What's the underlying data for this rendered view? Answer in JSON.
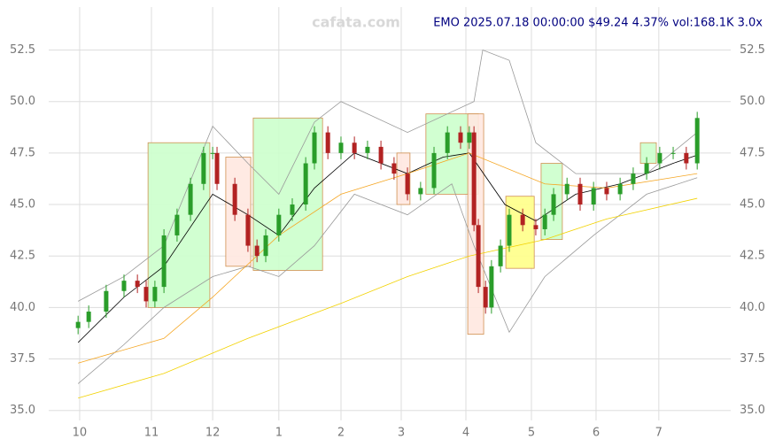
{
  "chart_data": {
    "type": "candlestick",
    "title": "EMO 2025.07.18 00:00:00 $49.24 4.37% vol:168.1K 3.0x",
    "watermark": "cafata.com",
    "xlim": [
      0,
      200
    ],
    "xticks": [
      {
        "value": 1.4,
        "label": "10"
      },
      {
        "value": 24.4,
        "label": "11"
      },
      {
        "value": 44,
        "label": "12"
      },
      {
        "value": 65.2,
        "label": "1"
      },
      {
        "value": 85.1,
        "label": "2"
      },
      {
        "value": 104.4,
        "label": "3"
      },
      {
        "value": 125.1,
        "label": "4"
      },
      {
        "value": 146.1,
        "label": "5"
      },
      {
        "value": 166.8,
        "label": "6"
      },
      {
        "value": 186.9,
        "label": "7"
      }
    ],
    "ylim": [
      34.3,
      54.5
    ],
    "yticks": [
      {
        "value": 35,
        "label": "35.0"
      },
      {
        "value": 37.5,
        "label": "37.5"
      },
      {
        "value": 40,
        "label": "40.0"
      },
      {
        "value": 42.5,
        "label": "42.5"
      },
      {
        "value": 45,
        "label": "45.0"
      },
      {
        "value": 47.5,
        "label": "47.5"
      },
      {
        "value": 50,
        "label": "50.0"
      },
      {
        "value": 52.5,
        "label": "52.5"
      }
    ],
    "grid": true,
    "up_color": "#2a9d2a",
    "down_color": "#b22222",
    "x": [
      0.9,
      4.3,
      9.9,
      15.6,
      19.9,
      22.7,
      25.5,
      28.4,
      32.6,
      36.9,
      41.1,
      44.0,
      45.4,
      51.1,
      55.3,
      58.2,
      61.0,
      65.2,
      69.5,
      73.8,
      76.6,
      80.9,
      85.1,
      89.4,
      93.6,
      97.9,
      102.1,
      106.4,
      110.6,
      114.9,
      119.2,
      123.4,
      126.2,
      127.7,
      129.1,
      131.4,
      133.3,
      136.2,
      139.0,
      143.3,
      147.5,
      150.4,
      153.2,
      157.5,
      161.7,
      166.0,
      170.2,
      174.5,
      178.7,
      183.0,
      187.2,
      191.5,
      195.7,
      199.2
    ],
    "open": [
      39.0,
      39.3,
      39.8,
      40.8,
      41.3,
      41.0,
      40.3,
      41.0,
      43.5,
      44.5,
      46.0,
      47.5,
      47.5,
      46.0,
      44.5,
      43.0,
      42.5,
      43.5,
      44.5,
      45.0,
      47.0,
      48.5,
      47.5,
      48.0,
      47.5,
      47.8,
      47.0,
      46.5,
      45.5,
      45.8,
      47.5,
      48.5,
      48.0,
      48.5,
      44.0,
      41.0,
      40.0,
      42.0,
      43.0,
      44.5,
      44.0,
      43.8,
      44.5,
      45.5,
      46.0,
      45.0,
      45.8,
      45.5,
      46.0,
      46.5,
      47.0,
      47.5,
      47.5,
      47.0
    ],
    "high": [
      39.6,
      40.1,
      41.1,
      41.6,
      41.6,
      41.3,
      41.3,
      43.8,
      44.8,
      46.3,
      47.8,
      47.8,
      47.8,
      46.3,
      44.8,
      43.3,
      43.8,
      44.8,
      45.3,
      47.3,
      48.8,
      48.8,
      48.3,
      48.3,
      48.1,
      48.1,
      47.3,
      46.8,
      46.1,
      47.8,
      48.8,
      48.8,
      48.8,
      48.8,
      44.3,
      41.3,
      42.3,
      43.3,
      44.8,
      44.8,
      44.3,
      44.8,
      45.8,
      46.3,
      46.3,
      46.1,
      46.1,
      46.3,
      46.8,
      47.3,
      47.8,
      47.8,
      47.8,
      49.5
    ],
    "low": [
      38.7,
      39.0,
      39.5,
      40.5,
      40.7,
      40.0,
      40.0,
      40.7,
      43.2,
      44.2,
      45.7,
      47.2,
      45.7,
      44.2,
      42.7,
      42.2,
      42.2,
      43.2,
      44.2,
      44.7,
      46.7,
      47.2,
      47.2,
      47.2,
      47.2,
      46.7,
      46.2,
      45.2,
      45.2,
      45.5,
      47.2,
      47.7,
      47.7,
      43.7,
      40.7,
      39.7,
      39.7,
      41.7,
      42.7,
      43.7,
      43.5,
      43.5,
      44.2,
      45.2,
      44.7,
      44.7,
      45.2,
      45.2,
      45.7,
      46.2,
      46.7,
      47.2,
      46.7,
      46.7
    ],
    "close": [
      39.3,
      39.8,
      40.8,
      41.3,
      41.0,
      40.3,
      41.0,
      43.5,
      44.5,
      46.0,
      47.5,
      47.5,
      46.0,
      44.5,
      43.0,
      42.5,
      43.5,
      44.5,
      45.0,
      47.0,
      48.5,
      47.5,
      48.0,
      47.5,
      47.8,
      47.0,
      46.5,
      45.5,
      45.8,
      47.5,
      48.5,
      48.0,
      48.5,
      44.0,
      41.0,
      40.0,
      42.0,
      43.0,
      44.5,
      44.0,
      43.8,
      44.5,
      45.5,
      46.0,
      45.0,
      45.8,
      45.5,
      46.0,
      46.5,
      47.0,
      47.5,
      47.5,
      47.0,
      49.2
    ],
    "lines": [
      {
        "color": "#000000",
        "x": [
          0.9,
          15.6,
          28.4,
          44,
          55.3,
          65.2,
          76.6,
          89.4,
          106.4,
          117.8,
          126.2,
          137.6,
          147.5,
          160.3,
          174.5,
          191.5,
          199.2
        ],
        "values": [
          38.3,
          40.5,
          42,
          45.5,
          44.5,
          43.5,
          45.8,
          47.5,
          46.5,
          47.3,
          47.5,
          45,
          44.2,
          45.5,
          46,
          47,
          47.4
        ]
      },
      {
        "color": "#999999",
        "x": [
          0.9,
          15.6,
          28.4,
          44,
          55.3,
          65.2,
          76.6,
          85.1,
          106.4,
          127.7,
          130.5,
          139,
          147.5,
          160.3,
          183,
          199.2
        ],
        "values": [
          40.3,
          41.5,
          43,
          48.8,
          47,
          45.5,
          49,
          50,
          48.5,
          50,
          52.5,
          52,
          48,
          46.5,
          46.5,
          48.5
        ]
      },
      {
        "color": "#999999",
        "x": [
          0.9,
          15.6,
          28.4,
          44,
          55.3,
          65.2,
          76.6,
          89.4,
          106.4,
          120.6,
          127.7,
          139,
          150.4,
          166,
          183,
          199.2
        ],
        "values": [
          36.3,
          38.2,
          40,
          41.5,
          42,
          41.5,
          43,
          45.5,
          44.5,
          46,
          43,
          38.8,
          41.5,
          43.5,
          45.5,
          46.3
        ]
      },
      {
        "color": "#f5a623",
        "x": [
          0.9,
          28.4,
          44,
          65.2,
          85.1,
          106.4,
          126.2,
          150.4,
          170.2,
          199.2
        ],
        "values": [
          37.3,
          38.5,
          40.5,
          43.5,
          45.5,
          46.5,
          47.5,
          46,
          45.8,
          46.5
        ]
      },
      {
        "color": "#f2d200",
        "x": [
          0.9,
          28.4,
          55.3,
          85.1,
          106.4,
          126.2,
          150.4,
          170.2,
          199.2
        ],
        "values": [
          35.6,
          36.8,
          38.5,
          40.2,
          41.5,
          42.5,
          43.3,
          44.3,
          45.3
        ]
      }
    ],
    "zones": [
      {
        "x": [
          23.3,
          43.1
        ],
        "y": [
          40,
          48
        ],
        "color": "#ccffcc"
      },
      {
        "x": [
          48.2,
          56.2
        ],
        "y": [
          42,
          47.3
        ],
        "color": "#ffe8e0"
      },
      {
        "x": [
          57,
          79.2
        ],
        "y": [
          41.8,
          49.2
        ],
        "color": "#ccffcc"
      },
      {
        "x": [
          103,
          107.2
        ],
        "y": [
          45,
          47.5
        ],
        "color": "#ffe8e0"
      },
      {
        "x": [
          112.3,
          129.1
        ],
        "y": [
          45.5,
          49.4
        ],
        "color": "#ccffcc"
      },
      {
        "x": [
          125.7,
          130.8
        ],
        "y": [
          38.7,
          49.4
        ],
        "color": "#ffe8e0"
      },
      {
        "x": [
          137.9,
          147
        ],
        "y": [
          41.9,
          45.4
        ],
        "color": "#ffff88"
      },
      {
        "x": [
          149.2,
          156
        ],
        "y": [
          43.3,
          47
        ],
        "color": "#ccffcc"
      },
      {
        "x": [
          181,
          186.1
        ],
        "y": [
          47,
          48
        ],
        "color": "#ccffcc"
      }
    ]
  }
}
